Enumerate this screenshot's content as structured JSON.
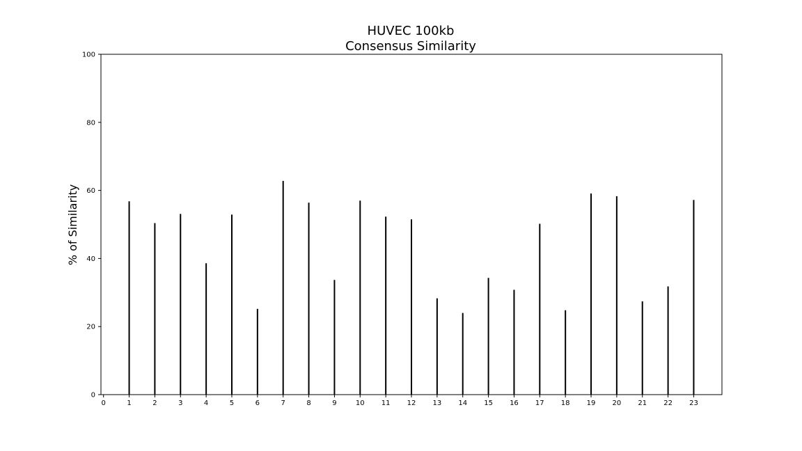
{
  "chart_data": {
    "type": "bar",
    "title": "HUVEC 100kb",
    "subtitle": "Consensus Similarity",
    "xlabel": "",
    "ylabel": "% of Similarity",
    "categories": [
      "0",
      "1",
      "2",
      "3",
      "4",
      "5",
      "6",
      "7",
      "8",
      "9",
      "10",
      "11",
      "12",
      "13",
      "14",
      "15",
      "16",
      "17",
      "18",
      "19",
      "20",
      "21",
      "22",
      "23"
    ],
    "x": [
      1,
      2,
      3,
      4,
      5,
      6,
      7,
      8,
      9,
      10,
      11,
      12,
      13,
      14,
      15,
      16,
      17,
      18,
      19,
      20,
      21,
      22,
      23
    ],
    "values": [
      56.8,
      50.4,
      53.1,
      38.6,
      52.9,
      25.2,
      62.8,
      56.4,
      33.7,
      57.0,
      52.3,
      51.5,
      28.3,
      24.0,
      34.3,
      30.8,
      50.2,
      24.8,
      59.1,
      58.3,
      27.4,
      31.8,
      57.2
    ],
    "xlim": [
      -0.1,
      24.1
    ],
    "ylim": [
      0,
      100
    ],
    "yticks": [
      0,
      20,
      40,
      60,
      80,
      100
    ],
    "grid": false,
    "colors": {
      "bar": "#000000",
      "axes": "#000000"
    }
  }
}
